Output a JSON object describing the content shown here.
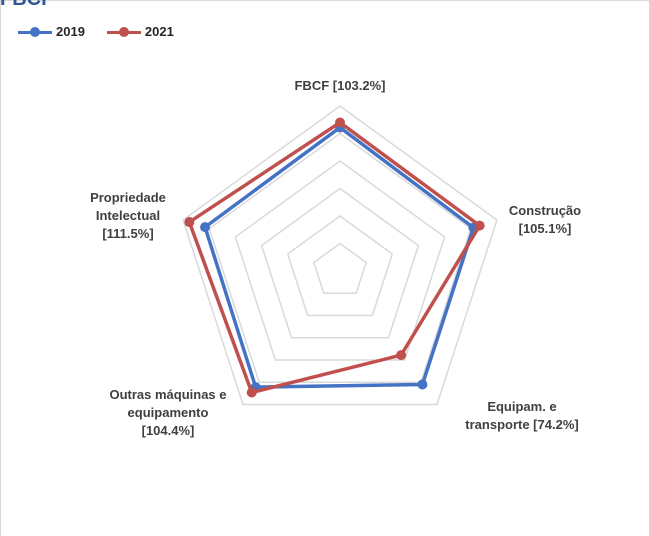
{
  "header": {
    "title": "FBCF"
  },
  "chart_data": {
    "type": "radar",
    "categories": [
      "FBCF [103.2%]",
      "Construção [105.1%]",
      "Equipam. e transporte [74.2%]",
      "Outras máquinas e equipamento [104.4%]",
      "Propriedade Intelectual [111.5%]"
    ],
    "category_lines": [
      [
        "FBCF [103.2%]"
      ],
      [
        "Construção",
        "[105.1%]"
      ],
      [
        "Equipam. e",
        "transporte [74.2%]"
      ],
      [
        "Outras máquinas e",
        "equipamento",
        "[104.4%]"
      ],
      [
        "Propriedade",
        "Intelectual",
        "[111.5%]"
      ]
    ],
    "series": [
      {
        "name": "2019",
        "color": "#4472c4",
        "values": [
          0.87,
          0.85,
          0.85,
          0.87,
          0.86
        ]
      },
      {
        "name": "2021",
        "color": "#c0504d",
        "values": [
          0.9,
          0.89,
          0.63,
          0.91,
          0.96
        ]
      }
    ],
    "rlim": [
      0,
      1
    ],
    "rings": 6,
    "grid": true,
    "legend_position": "top-left"
  }
}
